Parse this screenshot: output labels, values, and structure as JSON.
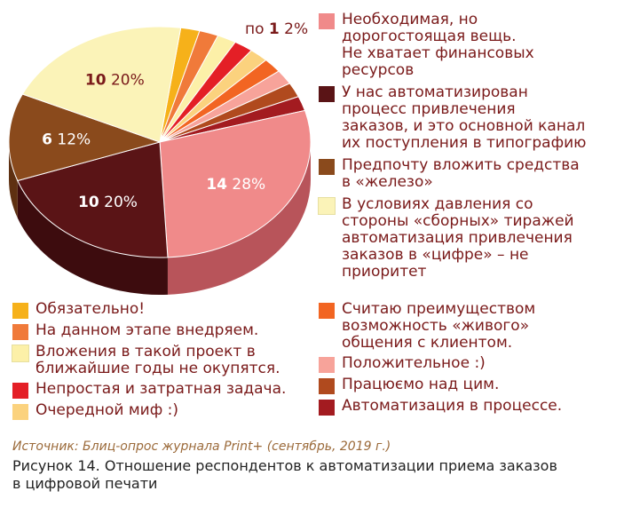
{
  "chart_data": {
    "type": "pie",
    "slices": [
      {
        "label": "Необходимая, но\nдорогостоящая вещь.\nНе хватает финансовых\nресурсов",
        "count": 14,
        "percent": 28,
        "color": "#f08a8a",
        "side": "#b8545a"
      },
      {
        "label": "У нас автоматизирован\nпроцесс привлечения\nзаказов, и это основной канал\nих поступления в типографию",
        "count": 10,
        "percent": 20,
        "color": "#5a1416",
        "side": "#3d0c0e"
      },
      {
        "label": "Предпочту вложить средства\nв «железо»",
        "count": 6,
        "percent": 12,
        "color": "#8a4a1c",
        "side": "#5e3011"
      },
      {
        "label": "В условиях давления со\nстороны «сборных» тиражей\nавтоматизация привлечения\nзаказов в «цифре» – не\nприоритет",
        "count": 10,
        "percent": 20,
        "color": "#fbf3b8",
        "side": "#d8cf8a"
      },
      {
        "label": "Обязательно!",
        "count": 1,
        "percent": 2,
        "color": "#f6b11a",
        "side": "#c98a0c"
      },
      {
        "label": "На данном этапе внедряем.",
        "count": 1,
        "percent": 2,
        "color": "#f07a3a",
        "side": "#c0581e"
      },
      {
        "label": "Вложения в такой проект в\nближайшие годы не окупятся.",
        "count": 1,
        "percent": 2,
        "color": "#fcf0a8",
        "side": "#d6c880"
      },
      {
        "label": "Непростая и затратная задача.",
        "count": 1,
        "percent": 2,
        "color": "#e41f26",
        "side": "#a51318"
      },
      {
        "label": "Очередной миф :)",
        "count": 1,
        "percent": 2,
        "color": "#fbd27e",
        "side": "#d4a850"
      },
      {
        "label": "Считаю преимуществом\nвозможность «живого»\nобщения с клиентом.",
        "count": 1,
        "percent": 2,
        "color": "#f26522",
        "side": "#c24a12"
      },
      {
        "label": "Положительное :)",
        "count": 1,
        "percent": 2,
        "color": "#f7a39a",
        "side": "#cf7a70"
      },
      {
        "label": "Працюємо над цим.",
        "count": 1,
        "percent": 2,
        "color": "#b04a1e",
        "side": "#7e3212"
      },
      {
        "label": "Автоматизация в процессе.",
        "count": 1,
        "percent": 2,
        "color": "#a31b20",
        "side": "#701014"
      }
    ],
    "small_slices_annotation": {
      "prefix": "по",
      "count": "1",
      "percent": "2%"
    },
    "slice_labels": [
      {
        "count": "14",
        "percent": "28%"
      },
      {
        "count": "10",
        "percent": "20%"
      },
      {
        "count": "6",
        "percent": "12%"
      },
      {
        "count": "10",
        "percent": "20%"
      }
    ]
  },
  "legend": {
    "right": [
      {
        "text": "Необходимая, но\nдорогостоящая вещь.\nНе хватает финансовых\nресурсов",
        "color": "#f08a8a"
      },
      {
        "text": "У нас автоматизирован\nпроцесс привлечения\nзаказов, и это основной канал\nих поступления в типографию",
        "color": "#5a1416"
      },
      {
        "text": "Предпочту вложить средства\nв «железо»",
        "color": "#8a4a1c"
      },
      {
        "text": "В условиях давления со\nстороны «сборных» тиражей\nавтоматизация привлечения\nзаказов в «цифре» – не\nприоритет",
        "color": "#fbf3b8"
      }
    ],
    "bottom_left": [
      {
        "text": "Обязательно!",
        "color": "#f6b11a"
      },
      {
        "text": "На данном этапе внедряем.",
        "color": "#f07a3a"
      },
      {
        "text": "Вложения в такой проект в\nближайшие годы не окупятся.",
        "color": "#fcf0a8"
      },
      {
        "text": "Непростая и затратная задача.",
        "color": "#e41f26"
      },
      {
        "text": "Очередной миф :)",
        "color": "#fbd27e"
      }
    ],
    "bottom_right": [
      {
        "text": "Считаю преимуществом\nвозможность «живого»\nобщения с клиентом.",
        "color": "#f26522"
      },
      {
        "text": "Положительное :)",
        "color": "#f7a39a"
      },
      {
        "text": "Працюємо над цим.",
        "color": "#b04a1e"
      },
      {
        "text": "Автоматизация в процессе.",
        "color": "#a31b20"
      }
    ]
  },
  "footer": {
    "source": "Источник: Блиц-опрос журнала Print+ (сентябрь, 2019 г.)",
    "caption": "Рисунок 14. Отношение респондентов к автоматизации приема заказов\nв цифровой печати"
  }
}
